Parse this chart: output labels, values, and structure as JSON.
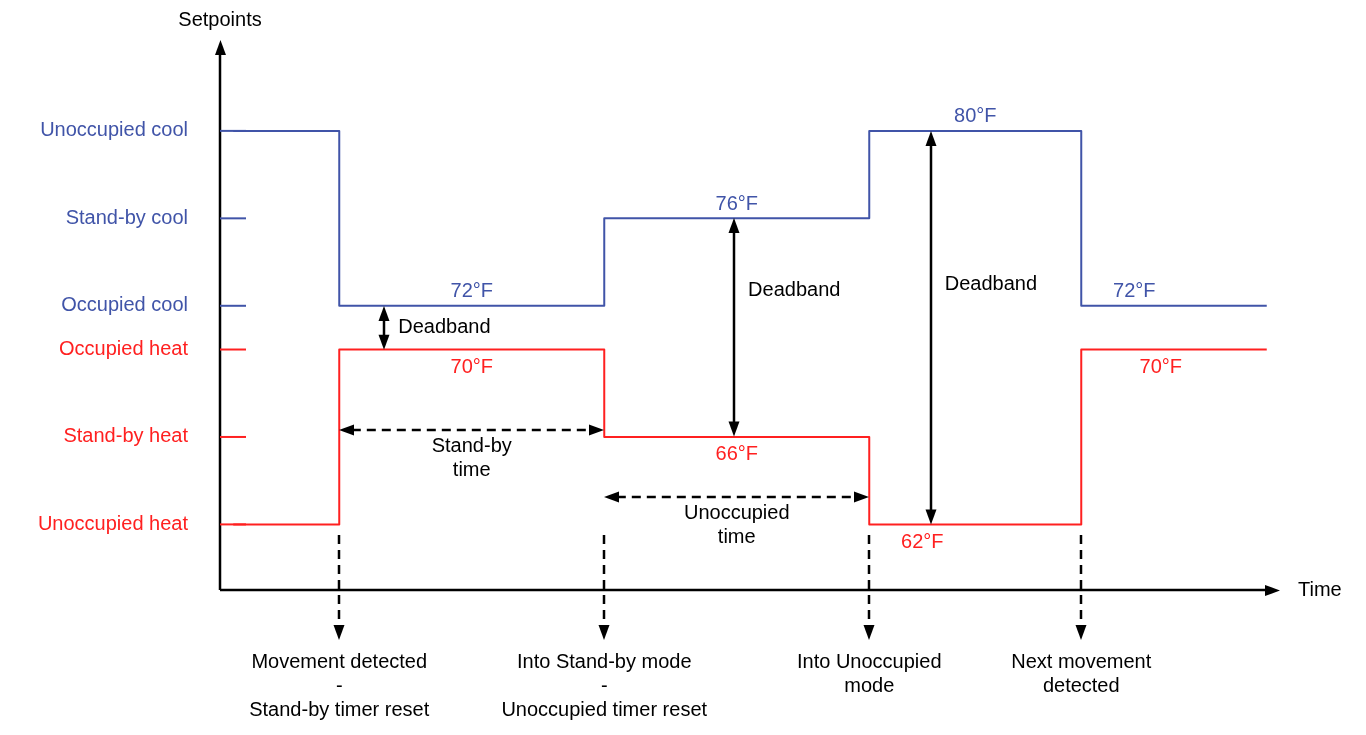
{
  "chart_data": {
    "type": "step",
    "xlabel": "Time",
    "ylabel": "Setpoints",
    "categories": [
      null,
      null,
      null,
      null,
      "Movement detected\n-\nStand-by timer reset",
      null,
      null,
      null,
      null,
      null,
      null,
      null,
      null,
      null,
      "Into Stand-by mode\n-\nUnoccupied timer reset",
      null,
      null,
      null,
      null,
      null,
      null,
      null,
      null,
      null,
      "Into Unoccupied\nmode",
      null,
      null,
      null,
      null,
      null,
      null,
      null,
      "Next movement\ndetected",
      null,
      null,
      null,
      null,
      null,
      null,
      null
    ],
    "ylim": [
      59,
      83.7
    ],
    "series": [
      {
        "color": "#4054a8",
        "values": [
          80,
          80,
          80,
          80,
          72,
          72,
          72,
          72,
          72,
          72,
          72,
          72,
          72,
          72,
          76,
          76,
          76,
          76,
          76,
          76,
          76,
          76,
          76,
          76,
          80,
          80,
          80,
          80,
          80,
          80,
          80,
          80,
          72,
          72,
          72,
          72,
          72,
          72,
          72,
          72
        ],
        "value_labels": [
          null,
          null,
          null,
          null,
          null,
          null,
          null,
          null,
          null,
          "72°F",
          null,
          null,
          null,
          null,
          null,
          null,
          null,
          null,
          null,
          "76°F",
          null,
          null,
          null,
          null,
          null,
          null,
          null,
          null,
          "80°F",
          null,
          null,
          null,
          null,
          null,
          "72°F",
          null,
          null,
          null,
          null,
          null
        ]
      },
      {
        "color": "#ff2020",
        "values": [
          62,
          62,
          62,
          62,
          70,
          70,
          70,
          70,
          70,
          70,
          70,
          70,
          70,
          70,
          66,
          66,
          66,
          66,
          66,
          66,
          66,
          66,
          66,
          66,
          62,
          62,
          62,
          62,
          62,
          62,
          62,
          62,
          70,
          70,
          70,
          70,
          70,
          70,
          70,
          70
        ],
        "value_labels": [
          null,
          null,
          null,
          null,
          null,
          null,
          null,
          null,
          null,
          "70°F",
          null,
          null,
          null,
          null,
          null,
          null,
          null,
          null,
          null,
          "66°F",
          null,
          null,
          null,
          null,
          null,
          null,
          "62°F",
          null,
          null,
          null,
          null,
          null,
          null,
          null,
          null,
          "70°F",
          null,
          null,
          null,
          null
        ]
      }
    ],
    "annotations": [
      "Unoccupied cool",
      "Stand-by cool",
      "Occupied cool",
      "Occupied heat",
      "Stand-by heat",
      "Unoccupied heat",
      "Deadband",
      "Deadband",
      "Deadband",
      "Stand-by\ntime",
      "Unoccupied\ntime"
    ]
  }
}
